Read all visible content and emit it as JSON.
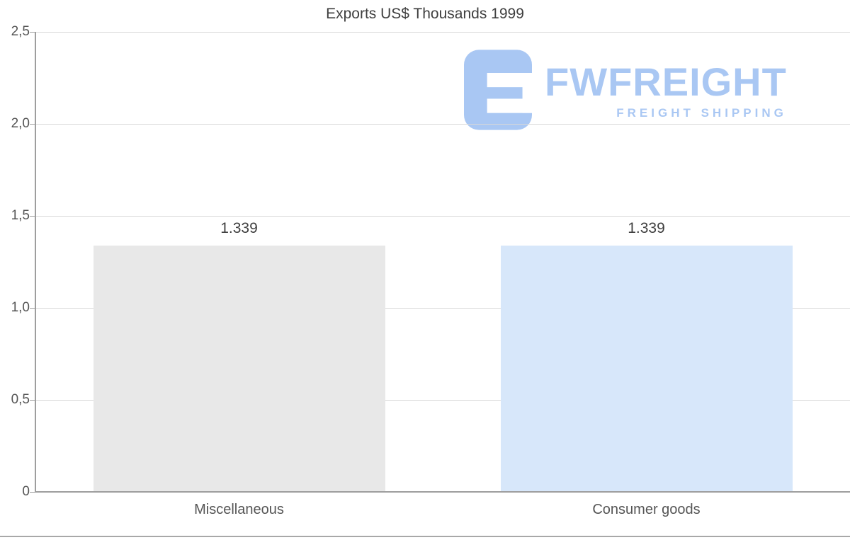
{
  "title": "Exports US$ Thousands 1999",
  "watermark": {
    "brand": "FWFREIGHT",
    "tagline": "FREIGHT SHIPPING",
    "color": "#a9c7f3"
  },
  "chart_data": {
    "type": "bar",
    "title": "Exports US$ Thousands 1999",
    "categories": [
      "Miscellaneous",
      "Consumer goods"
    ],
    "values": [
      1.339,
      1.339
    ],
    "value_labels": [
      "1.339",
      "1.339"
    ],
    "bar_colors": [
      "#e8e8e8",
      "#d7e7fa"
    ],
    "xlabel": "",
    "ylabel": "",
    "ylim": [
      0,
      2.5
    ],
    "ytick_step": 0.5,
    "ytick_labels": [
      "0",
      "0,5",
      "1,0",
      "1,5",
      "2,0",
      "2,5"
    ],
    "grid": true,
    "legend": false
  }
}
